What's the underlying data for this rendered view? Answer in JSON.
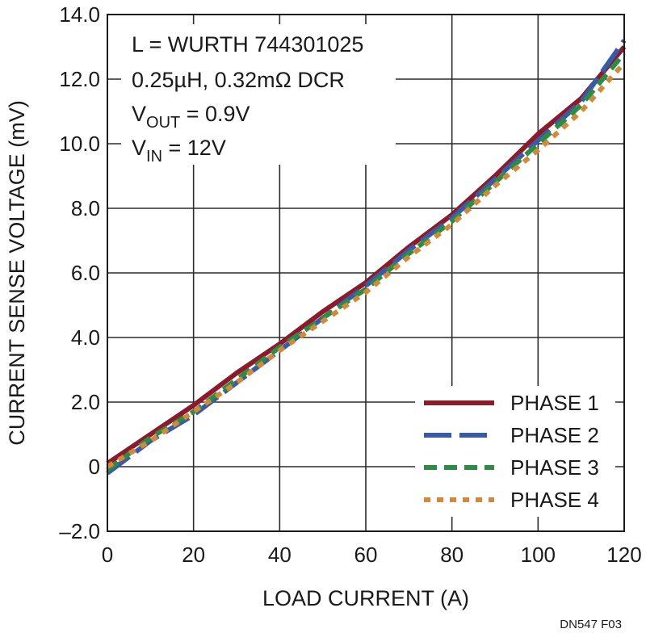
{
  "chart_data": {
    "type": "line",
    "title": "",
    "xlabel": "LOAD CURRENT (A)",
    "ylabel": "CURRENT SENSE VOLTAGE (mV)",
    "xlim": [
      0,
      120
    ],
    "ylim": [
      -2.0,
      14.0
    ],
    "x_ticks": [
      0,
      20,
      40,
      60,
      80,
      100,
      120
    ],
    "x_tick_labels": [
      "0",
      "20",
      "40",
      "60",
      "80",
      "100",
      "120"
    ],
    "y_ticks": [
      -2,
      0,
      2,
      4,
      6,
      8,
      10,
      12,
      14
    ],
    "y_tick_labels": [
      "–2.0",
      "0",
      "2.0",
      "4.0",
      "6.0",
      "8.0",
      "10.0",
      "12.0",
      "14.0"
    ],
    "grid": true,
    "legend_position": "bottom-right",
    "annotation": {
      "line1": "L = WURTH 744301025",
      "line2": "0.25µH, 0.32mΩ DCR",
      "line3_main": "V",
      "line3_sub": "OUT",
      "line3_rest": " = 0.9V",
      "line4_main": "V",
      "line4_sub": "IN",
      "line4_rest": " = 12V"
    },
    "figure_id": "DN547 F03",
    "x": [
      0,
      10,
      20,
      30,
      40,
      50,
      60,
      70,
      80,
      90,
      100,
      110,
      120
    ],
    "series": [
      {
        "name": "PHASE 1",
        "color": "#8b1a2b",
        "dash": "solid",
        "values": [
          0.1,
          1.0,
          1.9,
          2.9,
          3.8,
          4.8,
          5.7,
          6.8,
          7.8,
          9.0,
          10.3,
          11.4,
          13.0
        ]
      },
      {
        "name": "PHASE 2",
        "color": "#3a5aa8",
        "dash": "long",
        "values": [
          -0.2,
          0.8,
          1.6,
          2.6,
          3.6,
          4.6,
          5.6,
          6.7,
          7.7,
          8.9,
          10.1,
          11.3,
          13.2
        ]
      },
      {
        "name": "PHASE 3",
        "color": "#2e8b45",
        "dash": "medium",
        "values": [
          -0.1,
          0.9,
          1.7,
          2.7,
          3.7,
          4.6,
          5.5,
          6.6,
          7.6,
          8.8,
          10.0,
          11.2,
          12.8
        ]
      },
      {
        "name": "PHASE 4",
        "color": "#d08a3c",
        "dash": "short",
        "values": [
          0.0,
          0.8,
          1.7,
          2.6,
          3.6,
          4.5,
          5.4,
          6.5,
          7.5,
          8.7,
          9.8,
          11.0,
          12.5
        ]
      }
    ]
  }
}
